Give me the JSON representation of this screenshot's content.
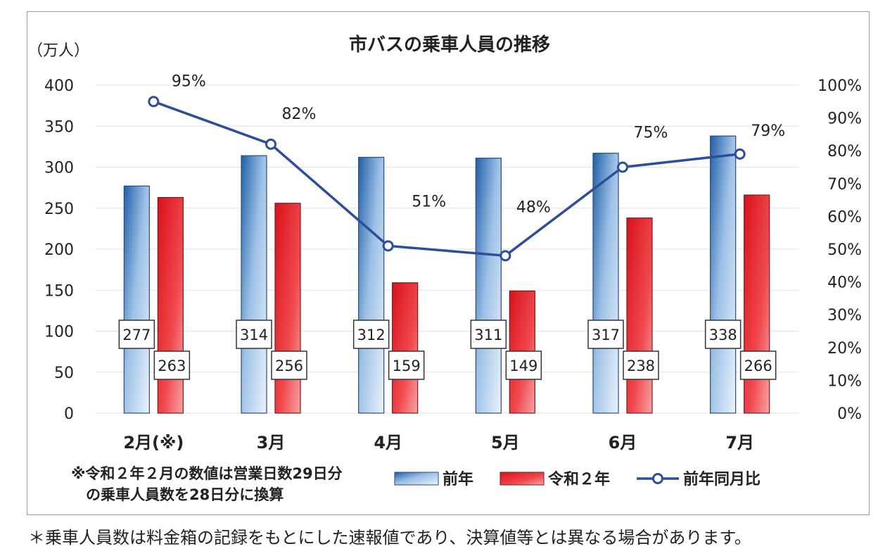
{
  "chart_data": {
    "type": "bar",
    "title": "市バスの乗車人員の推移",
    "ylabel": "（万人）",
    "ylim": [
      0,
      400
    ],
    "yticks": [
      "0",
      "50",
      "100",
      "150",
      "200",
      "250",
      "300",
      "350",
      "400"
    ],
    "y2lim": [
      0,
      100
    ],
    "y2ticks": [
      "0%",
      "10%",
      "20%",
      "30%",
      "40%",
      "50%",
      "60%",
      "70%",
      "80%",
      "90%",
      "100%"
    ],
    "categories": [
      "2月(※)",
      "3月",
      "4月",
      "5月",
      "6月",
      "7月"
    ],
    "series": [
      {
        "name": "前年",
        "type": "bar",
        "color": "#2e6db0",
        "values": [
          277,
          314,
          312,
          311,
          317,
          338
        ],
        "labels": [
          "277",
          "314",
          "312",
          "311",
          "317",
          "338"
        ]
      },
      {
        "name": "令和２年",
        "type": "bar",
        "color": "#e8242a",
        "values": [
          263,
          256,
          159,
          149,
          238,
          266
        ],
        "labels": [
          "263",
          "256",
          "159",
          "149",
          "238",
          "266"
        ]
      },
      {
        "name": "前年同月比",
        "type": "line",
        "axis": "right",
        "color": "#2e4e96",
        "values": [
          95,
          82,
          51,
          48,
          75,
          79
        ],
        "labels": [
          "95%",
          "82%",
          "51%",
          "48%",
          "75%",
          "79%"
        ]
      }
    ],
    "legend": [
      "前年",
      "令和２年",
      "前年同月比"
    ],
    "legend_position": "bottom-right"
  },
  "note_lines": [
    "※令和２年２月の数値は営業日数29日分",
    "　の乗車人員数を28日分に換算"
  ],
  "footnote": "＊乗車人員数は料金箱の記録をもとにした速報値であり、決算値等とは異なる場合があります。"
}
